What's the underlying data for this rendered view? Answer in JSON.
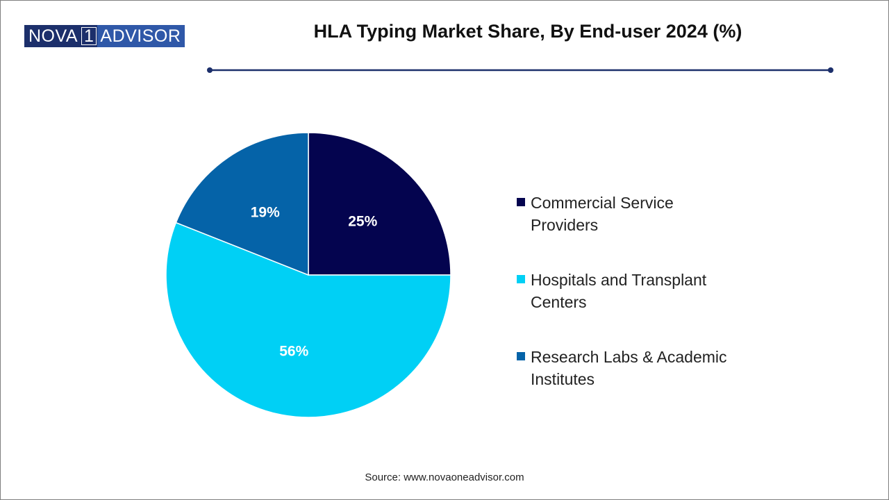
{
  "brand": {
    "logo_part1": "NOVA",
    "logo_part2": "1",
    "logo_part3": "ADVISOR"
  },
  "source": "Source: www.novaoneadvisor.com",
  "chart_data": {
    "type": "pie",
    "title": "HLA Typing Market Share, By End-user 2024 (%)",
    "legend_position": "right",
    "categories": [
      "Commercial Service Providers",
      "Hospitals and Transplant Centers",
      "Research Labs & Academic Institutes"
    ],
    "values": [
      25,
      56,
      19
    ],
    "value_labels": [
      "25%",
      "56%",
      "19%"
    ],
    "colors": [
      "#04044f",
      "#00d0f5",
      "#0563a8"
    ],
    "start_angle_deg": 0,
    "direction": "clockwise"
  }
}
